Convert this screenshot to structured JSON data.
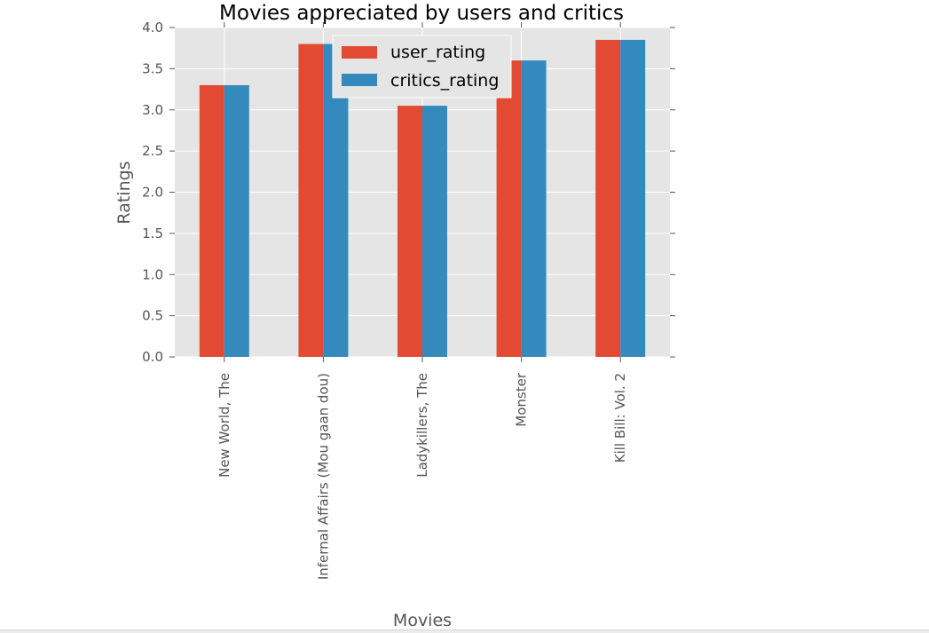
{
  "chart_data": {
    "type": "bar",
    "title": "Movies appreciated by users and critics",
    "xlabel": "Movies",
    "ylabel": "Ratings",
    "categories": [
      "New World, The",
      "Infernal Affairs (Mou gaan dou)",
      "Ladykillers, The",
      "Monster",
      "Kill Bill: Vol. 2"
    ],
    "series": [
      {
        "name": "user_rating",
        "color": "#e24a33",
        "values": [
          3.3,
          3.8,
          3.05,
          3.6,
          3.85
        ]
      },
      {
        "name": "critics_rating",
        "color": "#348abd",
        "values": [
          3.3,
          3.8,
          3.05,
          3.6,
          3.85
        ]
      }
    ],
    "ylim": [
      0,
      4.0
    ],
    "yticks": [
      "0.0",
      "0.5",
      "1.0",
      "1.5",
      "2.0",
      "2.5",
      "3.0",
      "3.5",
      "4.0"
    ],
    "grid": true,
    "legend_position": "top-center",
    "background_color": "#e5e5e5"
  }
}
